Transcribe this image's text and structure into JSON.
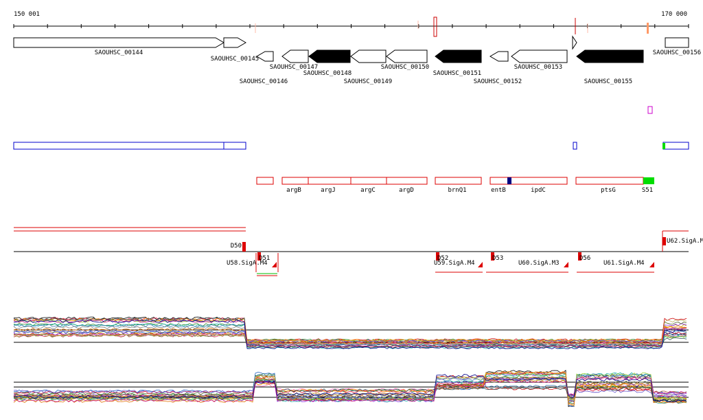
{
  "coords": {
    "start": "150 001",
    "end": "170 000"
  },
  "genes_plus": [
    {
      "id": "SAOUHSC_00144",
      "fill": "#ffffff"
    },
    {
      "id": "SAOUHSC_00145",
      "fill": "#ffffff"
    },
    {
      "id": "SAOUHSC_00156",
      "fill": "#ffffff"
    }
  ],
  "genes_minus": [
    {
      "id": "SAOUHSC_00146",
      "fill": "#ffffff"
    },
    {
      "id": "SAOUHSC_00147",
      "fill": "#ffffff"
    },
    {
      "id": "SAOUHSC_00148",
      "fill": "#000000"
    },
    {
      "id": "SAOUHSC_00149",
      "fill": "#ffffff"
    },
    {
      "id": "SAOUHSC_00150",
      "fill": "#ffffff"
    },
    {
      "id": "SAOUHSC_00151",
      "fill": "#000000"
    },
    {
      "id": "SAOUHSC_00152",
      "fill": "#ffffff"
    },
    {
      "id": "SAOUHSC_00153",
      "fill": "#ffffff"
    },
    {
      "id": "SAOUHSC_00155",
      "fill": "#000000"
    }
  ],
  "annotations": [
    "argB",
    "argJ",
    "argC",
    "argD",
    "brnQ1",
    "entB",
    "ipdC",
    "ptsG",
    "S51"
  ],
  "segments": [
    "D50",
    "D51",
    "D52",
    "D53",
    "D56",
    "U62.SigA.M",
    "U58.SigA.M4",
    "U59.SigA.M4",
    "U60.SigA.M3",
    "U61.SigA.M4"
  ],
  "colors": {
    "gene_outline": "#000000",
    "blue_track": "#0000cc",
    "red_track": "#dd0000",
    "green_mark": "#00dd00",
    "magenta_mark": "#cc00cc",
    "navy_mark": "#000080"
  }
}
